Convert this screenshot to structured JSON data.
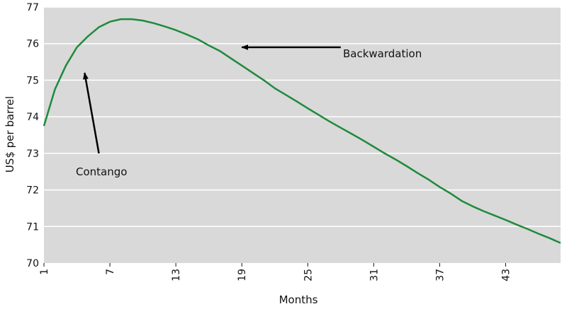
{
  "chart_data": {
    "type": "line",
    "xlabel": "Months",
    "ylabel": "US$ per barrel",
    "xlim": [
      1,
      48
    ],
    "ylim": [
      70,
      77
    ],
    "grid": "horizontal",
    "x_ticks": [
      1,
      7,
      13,
      19,
      25,
      31,
      37,
      43
    ],
    "y_ticks": [
      70,
      71,
      72,
      73,
      74,
      75,
      76,
      77
    ],
    "series": [
      {
        "color": "#1f8a3c",
        "x": [
          1,
          2,
          3,
          4,
          5,
          6,
          7,
          8,
          9,
          10,
          11,
          12,
          13,
          14,
          15,
          16,
          17,
          18,
          19,
          20,
          21,
          22,
          23,
          24,
          25,
          26,
          27,
          28,
          29,
          30,
          31,
          32,
          33,
          34,
          35,
          36,
          37,
          38,
          39,
          40,
          41,
          42,
          43,
          44,
          45,
          46,
          47,
          48
        ],
        "y": [
          73.75,
          74.75,
          75.4,
          75.9,
          76.2,
          76.45,
          76.6,
          76.67,
          76.67,
          76.63,
          76.56,
          76.47,
          76.37,
          76.25,
          76.12,
          75.95,
          75.8,
          75.6,
          75.4,
          75.2,
          75.0,
          74.78,
          74.6,
          74.42,
          74.23,
          74.05,
          73.87,
          73.7,
          73.53,
          73.36,
          73.18,
          73.0,
          72.83,
          72.65,
          72.46,
          72.28,
          72.08,
          71.9,
          71.7,
          71.55,
          71.42,
          71.3,
          71.18,
          71.05,
          70.93,
          70.8,
          70.68,
          70.55
        ]
      }
    ],
    "annotations": [
      {
        "text": "Backwardation",
        "arrow_from": [
          28,
          75.9
        ],
        "arrow_to": [
          19,
          75.9
        ]
      },
      {
        "text": "Contango",
        "arrow_from": [
          6,
          73.0
        ],
        "arrow_to": [
          4.7,
          75.2
        ]
      }
    ]
  }
}
